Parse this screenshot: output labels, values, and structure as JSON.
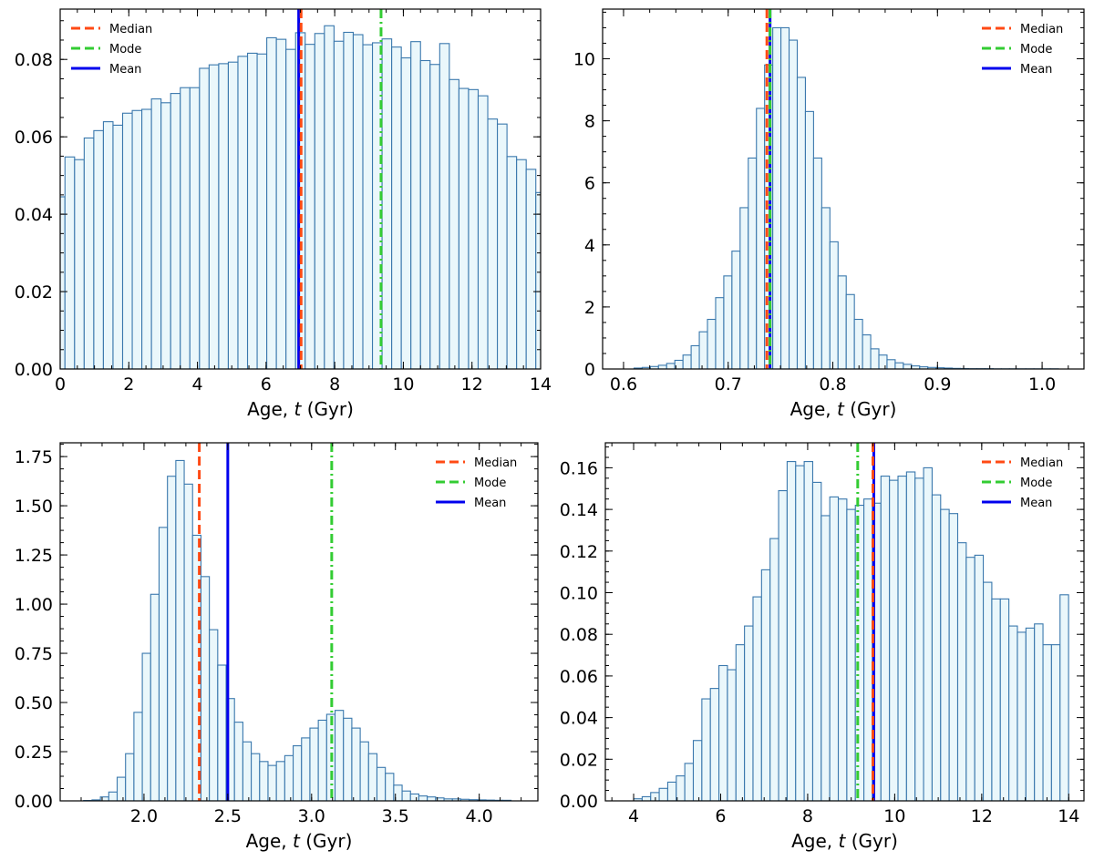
{
  "chart_data": [
    {
      "type": "histogram",
      "xlabel": "Age, t (Gyr)",
      "xlabel_parts": [
        "Age, ",
        "t",
        " (Gyr)"
      ],
      "xlim": [
        0,
        14
      ],
      "ylim": [
        0,
        0.093
      ],
      "xticks": [
        0,
        2,
        4,
        6,
        8,
        10,
        12,
        14
      ],
      "xtick_labels": [
        "0",
        "2",
        "4",
        "6",
        "8",
        "10",
        "12",
        "14"
      ],
      "yticks": [
        0,
        0.02,
        0.04,
        0.06,
        0.08
      ],
      "ytick_labels": [
        "0.00",
        "0.02",
        "0.04",
        "0.06",
        "0.08"
      ],
      "bin_start": -0.14,
      "bin_width": 0.28,
      "values": [
        0.0445,
        0.0548,
        0.0541,
        0.0597,
        0.0616,
        0.0639,
        0.063,
        0.0661,
        0.0668,
        0.0671,
        0.0698,
        0.0688,
        0.0712,
        0.0727,
        0.0727,
        0.0777,
        0.0786,
        0.0789,
        0.0793,
        0.0808,
        0.0816,
        0.0814,
        0.0856,
        0.0852,
        0.0826,
        0.0869,
        0.0839,
        0.0867,
        0.0887,
        0.0847,
        0.087,
        0.0864,
        0.0838,
        0.0843,
        0.0853,
        0.0832,
        0.0804,
        0.0846,
        0.0797,
        0.0787,
        0.0841,
        0.0748,
        0.0725,
        0.0722,
        0.0706,
        0.0646,
        0.0633,
        0.0549,
        0.0541,
        0.0516,
        0.0456,
        0.0386
      ],
      "lines": {
        "median": 7.02,
        "mode": 9.35,
        "mean": 6.95
      },
      "legend": [
        "Median",
        "Mode",
        "Mean"
      ],
      "legend_location": "upper-left"
    },
    {
      "type": "histogram",
      "xlabel": "Age, t (Gyr)",
      "xlabel_parts": [
        "Age, ",
        "t",
        " (Gyr)"
      ],
      "xlim": [
        0.58,
        1.04
      ],
      "ylim": [
        0,
        11.6
      ],
      "xticks": [
        0.6,
        0.7,
        0.8,
        0.9,
        1.0
      ],
      "xtick_labels": [
        "0.6",
        "0.7",
        "0.8",
        "0.9",
        "1.0"
      ],
      "yticks": [
        0,
        2,
        4,
        6,
        8,
        10
      ],
      "ytick_labels": [
        "0",
        "2",
        "4",
        "6",
        "8",
        "10"
      ],
      "bin_start": 0.61,
      "bin_width": 0.0078,
      "values": [
        0.03,
        0.05,
        0.08,
        0.12,
        0.18,
        0.28,
        0.45,
        0.75,
        1.2,
        1.6,
        2.3,
        3.0,
        3.8,
        5.2,
        6.8,
        8.4,
        9.8,
        11.0,
        11.0,
        10.6,
        9.4,
        8.3,
        6.8,
        5.2,
        4.1,
        3.0,
        2.4,
        1.6,
        1.1,
        0.65,
        0.45,
        0.3,
        0.2,
        0.15,
        0.1,
        0.07,
        0.05,
        0.04,
        0.03,
        0.02,
        0.015,
        0.01,
        0.01,
        0.01,
        0.005,
        0.005,
        0.005,
        0.005,
        0.005,
        0.005,
        0.005,
        0.005
      ],
      "lines": {
        "median": 0.737,
        "mode": 0.74,
        "mean": 0.74
      },
      "legend": [
        "Median",
        "Mode",
        "Mean"
      ],
      "legend_location": "upper-right"
    },
    {
      "type": "histogram",
      "xlabel": "Age, t (Gyr)",
      "xlabel_parts": [
        "Age, ",
        "t",
        " (Gyr)"
      ],
      "xlim": [
        1.5,
        4.35
      ],
      "ylim": [
        0,
        1.82
      ],
      "xticks": [
        2.0,
        2.5,
        3.0,
        3.5,
        4.0
      ],
      "xtick_labels": [
        "2.0",
        "2.5",
        "3.0",
        "3.5",
        "4.0"
      ],
      "yticks": [
        0,
        0.25,
        0.5,
        0.75,
        1.0,
        1.25,
        1.5,
        1.75
      ],
      "ytick_labels": [
        "0.00",
        "0.25",
        "0.50",
        "0.75",
        "1.00",
        "1.25",
        "1.50",
        "1.75"
      ],
      "bin_start": 1.64,
      "bin_width": 0.05,
      "values": [
        0.002,
        0.005,
        0.02,
        0.045,
        0.12,
        0.24,
        0.45,
        0.75,
        1.05,
        1.39,
        1.65,
        1.73,
        1.61,
        1.35,
        1.14,
        0.87,
        0.69,
        0.52,
        0.4,
        0.3,
        0.24,
        0.2,
        0.18,
        0.2,
        0.23,
        0.28,
        0.32,
        0.37,
        0.41,
        0.44,
        0.46,
        0.42,
        0.37,
        0.3,
        0.24,
        0.17,
        0.14,
        0.08,
        0.05,
        0.035,
        0.025,
        0.02,
        0.015,
        0.01,
        0.01,
        0.008,
        0.006,
        0.005,
        0.004,
        0.003,
        0.003
      ],
      "lines": {
        "median": 2.33,
        "mode": 3.12,
        "mean": 2.5
      },
      "legend": [
        "Median",
        "Mode",
        "Mean"
      ],
      "legend_location": "upper-right"
    },
    {
      "type": "histogram",
      "xlabel": "Age, t (Gyr)",
      "xlabel_parts": [
        "Age, ",
        "t",
        " (Gyr)"
      ],
      "xlim": [
        3.35,
        14.35
      ],
      "ylim": [
        0,
        0.172
      ],
      "xticks": [
        4,
        6,
        8,
        10,
        12,
        14
      ],
      "xtick_labels": [
        "4",
        "6",
        "8",
        "10",
        "12",
        "14"
      ],
      "yticks": [
        0,
        0.02,
        0.04,
        0.06,
        0.08,
        0.1,
        0.12,
        0.14,
        0.16
      ],
      "ytick_labels": [
        "0.00",
        "0.02",
        "0.04",
        "0.06",
        "0.08",
        "0.10",
        "0.12",
        "0.14",
        "0.16"
      ],
      "bin_start": 4.0,
      "bin_width": 0.196,
      "values": [
        0.001,
        0.002,
        0.004,
        0.006,
        0.009,
        0.012,
        0.018,
        0.029,
        0.049,
        0.054,
        0.065,
        0.063,
        0.075,
        0.084,
        0.098,
        0.111,
        0.126,
        0.149,
        0.163,
        0.161,
        0.163,
        0.153,
        0.137,
        0.146,
        0.145,
        0.14,
        0.142,
        0.145,
        0.143,
        0.156,
        0.154,
        0.156,
        0.158,
        0.155,
        0.16,
        0.147,
        0.14,
        0.138,
        0.124,
        0.117,
        0.118,
        0.105,
        0.097,
        0.097,
        0.084,
        0.081,
        0.083,
        0.085,
        0.075,
        0.075,
        0.099
      ],
      "lines": {
        "median": 9.5,
        "mode": 9.15,
        "mean": 9.52
      },
      "legend": [
        "Median",
        "Mode",
        "Mean"
      ],
      "legend_location": "upper-right"
    }
  ],
  "style": {
    "bar_fill": "#eaf7fb",
    "bar_edge": "#3a78ad",
    "median_color": "#ff4a14",
    "mode_color": "#33cc33",
    "mean_color": "#0000ee"
  }
}
